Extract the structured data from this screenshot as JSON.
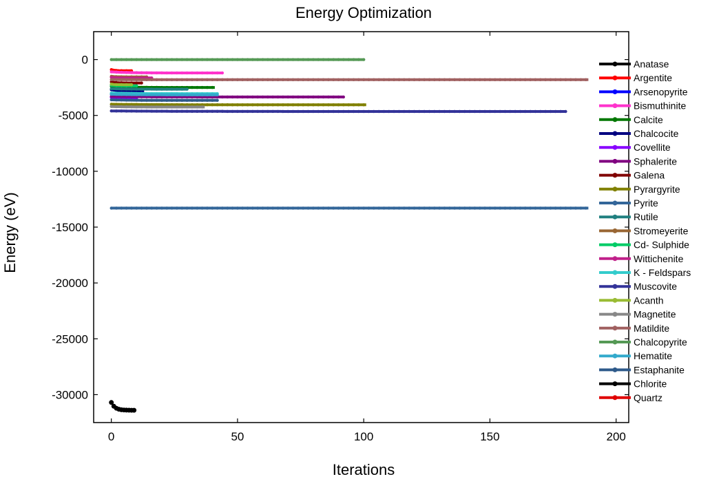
{
  "chart_data": {
    "type": "line",
    "title": "Energy Optimization",
    "xlabel": "Iterations",
    "ylabel": "Energy (eV)",
    "xlim": [
      -7,
      205
    ],
    "ylim": [
      -32500,
      2500
    ],
    "xticks": [
      0,
      50,
      100,
      150,
      200
    ],
    "yticks": [
      0,
      -5000,
      -10000,
      -15000,
      -20000,
      -25000,
      -30000
    ],
    "xtick_labels": [
      "0",
      "50",
      "100",
      "150",
      "200"
    ],
    "ytick_labels": [
      "0",
      "-5000",
      "-10000",
      "-15000",
      "-20000",
      "-25000",
      "-30000"
    ],
    "legend_position": "right",
    "series": [
      {
        "name": "Anatase",
        "color": "#000000",
        "x_end": 0,
        "y_start": 0,
        "y_end": 0
      },
      {
        "name": "Argentite",
        "color": "#ff0000",
        "x_end": 8,
        "y_start": -900,
        "y_end": -1000
      },
      {
        "name": "Arsenopyrite",
        "color": "#0000ff",
        "x_end": 10,
        "y_start": -3100,
        "y_end": -3200
      },
      {
        "name": "Bismuthinite",
        "color": "#ff33cc",
        "x_end": 44,
        "y_start": -1100,
        "y_end": -1200
      },
      {
        "name": "Calcite",
        "color": "#007700",
        "x_end": 41,
        "y_start": -2400,
        "y_end": -2500
      },
      {
        "name": "Chalcocite",
        "color": "#000080",
        "x_end": 13,
        "y_start": -2700,
        "y_end": -2800
      },
      {
        "name": "Covellite",
        "color": "#8800ff",
        "x_end": 10,
        "y_start": -3400,
        "y_end": -3500
      },
      {
        "name": "Sphalerite",
        "color": "#800080",
        "x_end": 92,
        "y_start": -3300,
        "y_end": -3350
      },
      {
        "name": "Galena",
        "color": "#800000",
        "x_end": 12,
        "y_start": -2000,
        "y_end": -2100
      },
      {
        "name": "Pyrargyrite",
        "color": "#808000",
        "x_end": 101,
        "y_start": -4000,
        "y_end": -4050
      },
      {
        "name": "Pyrite",
        "color": "#336699",
        "x_end": 189,
        "y_start": -13300,
        "y_end": -13300
      },
      {
        "name": "Rutile",
        "color": "#208080",
        "x_end": 30,
        "y_start": -2600,
        "y_end": -2650
      },
      {
        "name": "Stromeyerite",
        "color": "#996633",
        "x_end": 14,
        "y_start": -1500,
        "y_end": -1550
      },
      {
        "name": "Cd- Sulphide",
        "color": "#00cc66",
        "x_end": 10,
        "y_start": -2300,
        "y_end": -2350
      },
      {
        "name": "Wittichenite",
        "color": "#c0208a",
        "x_end": 16,
        "y_start": -1600,
        "y_end": -1650
      },
      {
        "name": "K - Feldspars",
        "color": "#33cccc",
        "x_end": 42,
        "y_start": -3000,
        "y_end": -3050
      },
      {
        "name": "Muscovite",
        "color": "#333399",
        "x_end": 180,
        "y_start": -4600,
        "y_end": -4650
      },
      {
        "name": "Acanth",
        "color": "#99bb33",
        "x_end": 8,
        "y_start": -2200,
        "y_end": -2250
      },
      {
        "name": "Magnetite",
        "color": "#888888",
        "x_end": 37,
        "y_start": -4200,
        "y_end": -4250
      },
      {
        "name": "Matildite",
        "color": "#a06060",
        "x_end": 189,
        "y_start": -1800,
        "y_end": -1800
      },
      {
        "name": "Chalcopyrite",
        "color": "#559955",
        "x_end": 100,
        "y_start": 0,
        "y_end": 0
      },
      {
        "name": "Hematite",
        "color": "#33aacc",
        "x_end": 42,
        "y_start": -3100,
        "y_end": -3150
      },
      {
        "name": "Estaphanite",
        "color": "#2e5a8a",
        "x_end": 42,
        "y_start": -3600,
        "y_end": -3650
      },
      {
        "name": "Chlorite",
        "color": "#000000",
        "x_end": 9,
        "y_start": -30700,
        "y_end": -31400
      },
      {
        "name": "Quartz",
        "color": "#e00000",
        "x_end": 0,
        "y_start": 0,
        "y_end": 0
      }
    ]
  }
}
